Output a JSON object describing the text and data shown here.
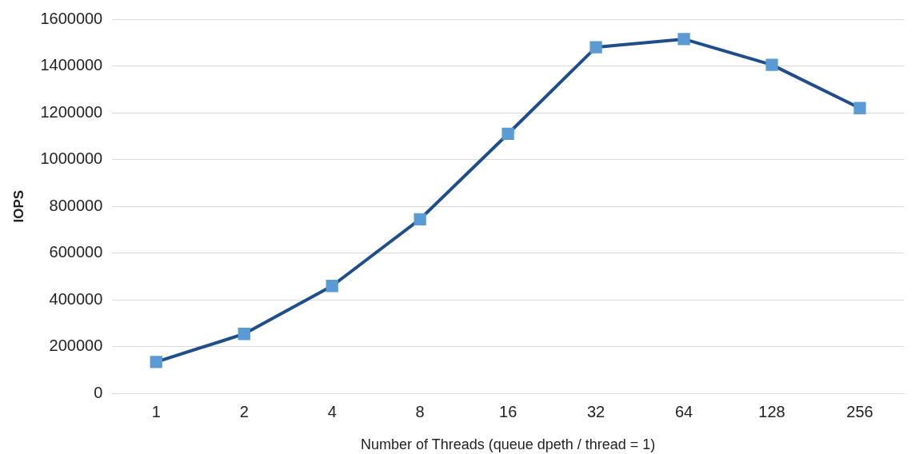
{
  "chart_data": {
    "type": "line",
    "xlabel": "Number of Threads (queue dpeth / thread = 1)",
    "ylabel": "IOPS",
    "categories": [
      "1",
      "2",
      "4",
      "8",
      "16",
      "32",
      "64",
      "128",
      "256"
    ],
    "series": [
      {
        "color": "#1f4e8b",
        "values": [
          135000,
          255000,
          460000,
          745000,
          1110000,
          1480000,
          1515000,
          1405000,
          1220000
        ]
      }
    ],
    "ylim": [
      0,
      1600000
    ],
    "yticks": [
      0,
      200000,
      400000,
      600000,
      800000,
      1000000,
      1200000,
      1400000,
      1600000
    ],
    "grid": "y",
    "legend": false,
    "marker": "square",
    "line_style": "solid"
  }
}
